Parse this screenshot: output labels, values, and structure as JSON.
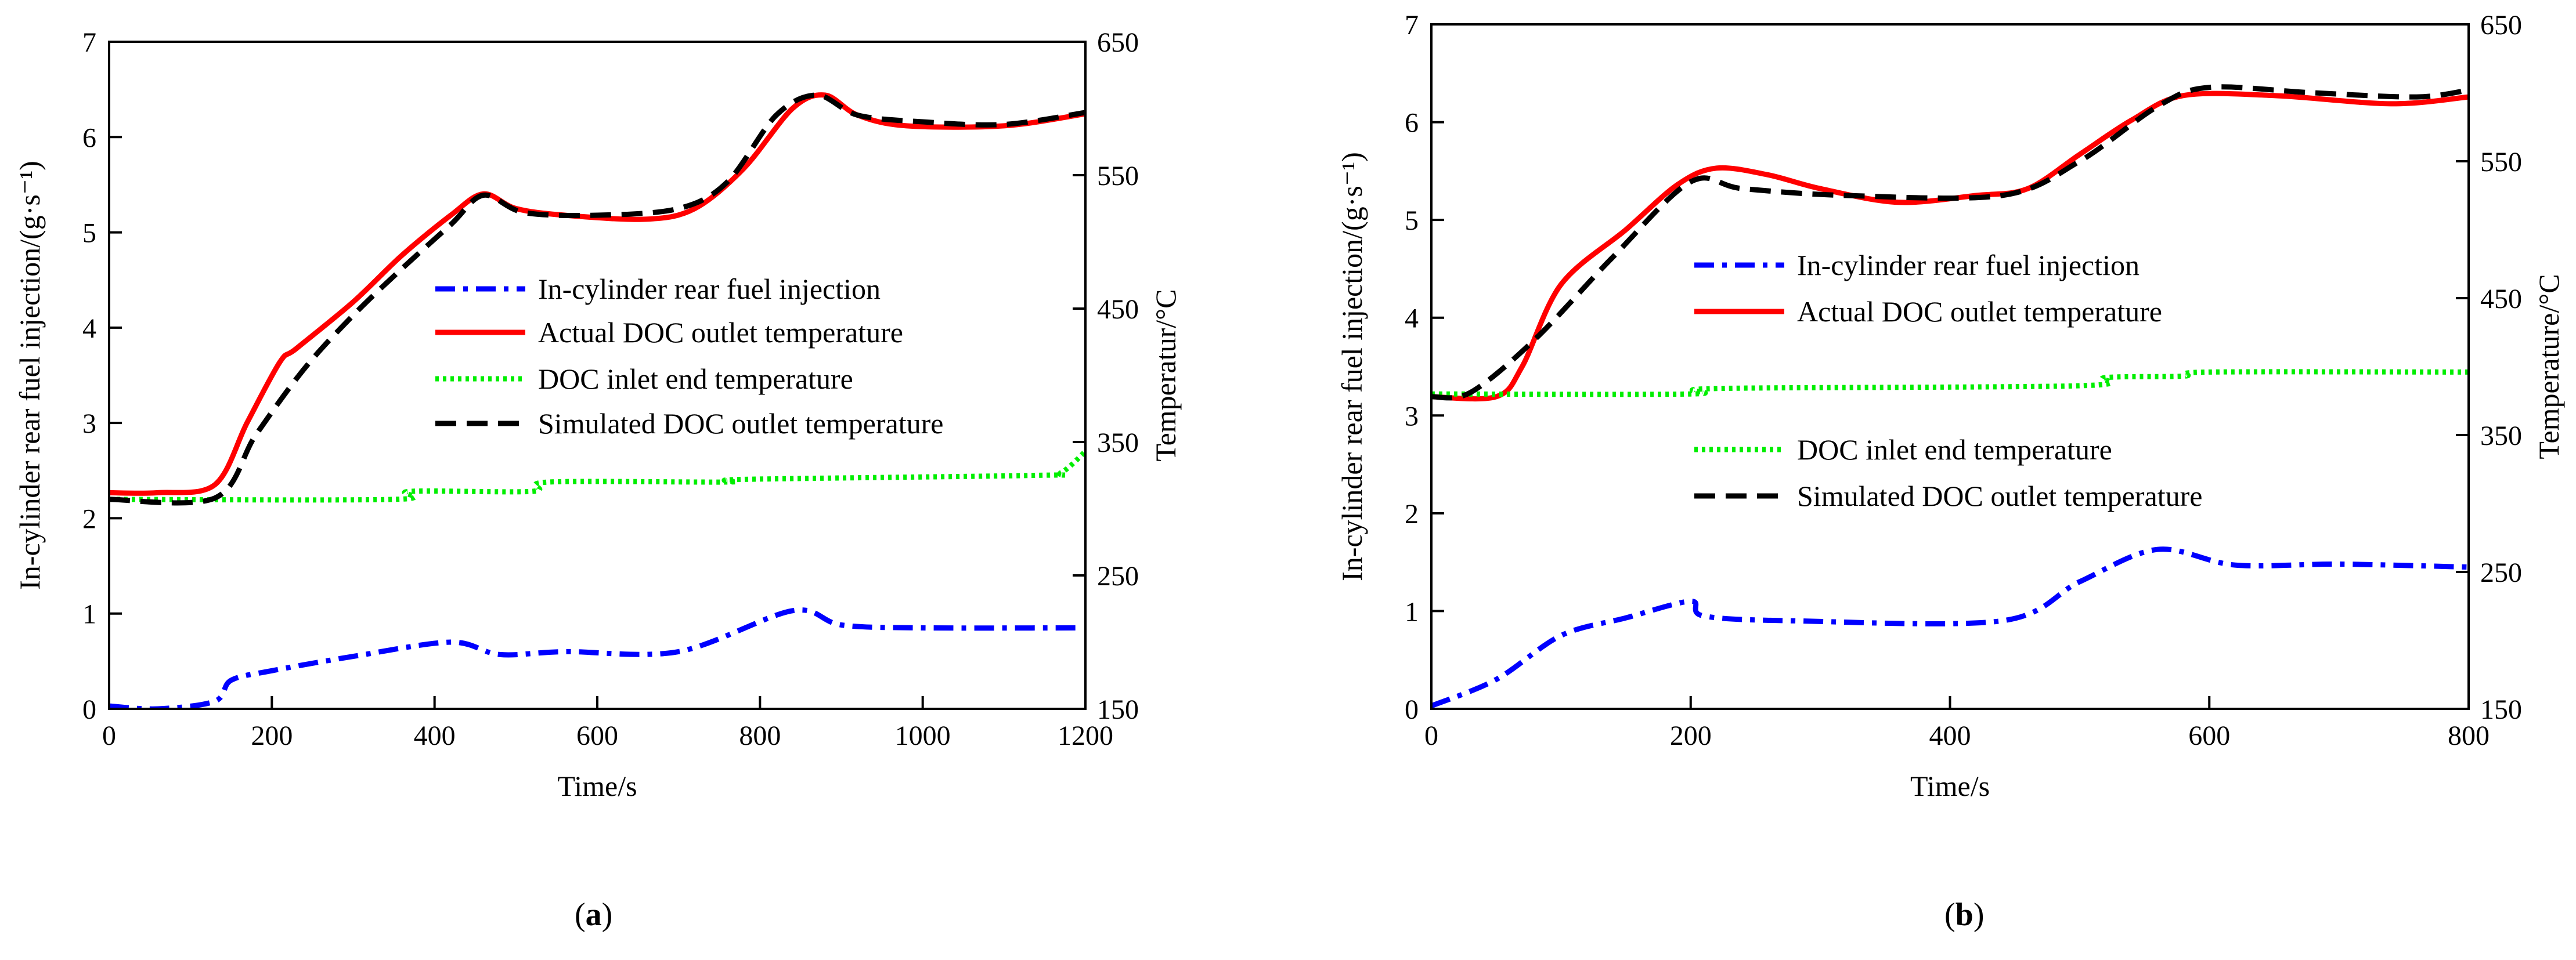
{
  "colors": {
    "injection": "#0000ff",
    "actual_outlet": "#ff0000",
    "inlet": "#00ee00",
    "simulated_outlet": "#000000"
  },
  "chart_data": [
    {
      "type": "line",
      "caption": "(a)",
      "caption_letter": "a",
      "xlabel": "Time/s",
      "ylabel_left": "In-cylinder rear fuel injection/(g·s⁻¹)",
      "ylabel_right": "Temperatur/°C",
      "xlim": [
        0,
        1200
      ],
      "ylim_left": [
        0,
        7
      ],
      "ylim_right": [
        150,
        650
      ],
      "x_ticks": [
        0,
        200,
        400,
        600,
        800,
        1000,
        1200
      ],
      "y_left_ticks": [
        0,
        1,
        2,
        3,
        4,
        5,
        6,
        7
      ],
      "y_right_ticks": [
        150,
        250,
        350,
        450,
        550,
        650
      ],
      "legend": [
        {
          "label": "In-cylinder rear fuel injection",
          "series": "injection"
        },
        {
          "label": "Actual DOC outlet temperature",
          "series": "actual_outlet"
        },
        {
          "label": "DOC inlet end temperature",
          "series": "inlet"
        },
        {
          "label": "Simulated DOC outlet temperature",
          "series": "simulated_outlet"
        }
      ],
      "series": [
        {
          "name": "In-cylinder rear fuel injection",
          "key": "injection",
          "axis": "left",
          "points": [
            [
              0,
              0.03
            ],
            [
              60,
              0.0
            ],
            [
              130,
              0.08
            ],
            [
              150,
              0.3
            ],
            [
              200,
              0.4
            ],
            [
              300,
              0.55
            ],
            [
              420,
              0.7
            ],
            [
              480,
              0.57
            ],
            [
              560,
              0.6
            ],
            [
              700,
              0.6
            ],
            [
              840,
              1.03
            ],
            [
              900,
              0.88
            ],
            [
              1000,
              0.85
            ],
            [
              1190,
              0.85
            ]
          ]
        },
        {
          "name": "Actual DOC outlet temperature",
          "key": "actual_outlet",
          "axis": "right",
          "points": [
            [
              0,
              312
            ],
            [
              60,
              312
            ],
            [
              130,
              318
            ],
            [
              170,
              365
            ],
            [
              210,
              410
            ],
            [
              230,
              420
            ],
            [
              300,
              455
            ],
            [
              360,
              490
            ],
            [
              420,
              520
            ],
            [
              460,
              536
            ],
            [
              500,
              525
            ],
            [
              560,
              520
            ],
            [
              660,
              517
            ],
            [
              720,
              525
            ],
            [
              780,
              555
            ],
            [
              840,
              600
            ],
            [
              880,
              610
            ],
            [
              920,
              595
            ],
            [
              980,
              587
            ],
            [
              1100,
              587
            ],
            [
              1200,
              596
            ]
          ]
        },
        {
          "name": "DOC inlet end temperature",
          "key": "inlet",
          "axis": "right",
          "points": [
            [
              0,
              307
            ],
            [
              350,
              307
            ],
            [
              370,
              313
            ],
            [
              520,
              313
            ],
            [
              540,
              320
            ],
            [
              760,
              320
            ],
            [
              780,
              322
            ],
            [
              1140,
              325
            ],
            [
              1170,
              327
            ],
            [
              1200,
              343
            ]
          ]
        },
        {
          "name": "Simulated DOC outlet temperature",
          "key": "simulated_outlet",
          "axis": "right",
          "points": [
            [
              0,
              307
            ],
            [
              130,
              308
            ],
            [
              180,
              355
            ],
            [
              240,
              405
            ],
            [
              300,
              445
            ],
            [
              360,
              480
            ],
            [
              420,
              513
            ],
            [
              460,
              535
            ],
            [
              510,
              522
            ],
            [
              600,
              520
            ],
            [
              700,
              525
            ],
            [
              760,
              545
            ],
            [
              820,
              595
            ],
            [
              870,
              610
            ],
            [
              920,
              595
            ],
            [
              1000,
              590
            ],
            [
              1100,
              588
            ],
            [
              1200,
              597
            ]
          ]
        }
      ]
    },
    {
      "type": "line",
      "caption": "(b)",
      "caption_letter": "b",
      "xlabel": "Time/s",
      "ylabel_left": "In-cylinder rear fuel injection/(g·s⁻¹)",
      "ylabel_right": "Temperature/°C",
      "xlim": [
        0,
        800
      ],
      "ylim_left": [
        0,
        7
      ],
      "ylim_right": [
        150,
        650
      ],
      "x_ticks": [
        0,
        200,
        400,
        600,
        800
      ],
      "y_left_ticks": [
        0,
        1,
        2,
        3,
        4,
        5,
        6,
        7
      ],
      "y_right_ticks": [
        150,
        250,
        350,
        450,
        550,
        650
      ],
      "legend": [
        {
          "label": "In-cylinder rear fuel injection",
          "series": "injection"
        },
        {
          "label": "Actual DOC outlet temperature",
          "series": "actual_outlet"
        },
        {
          "label": "DOC inlet end temperature",
          "series": "inlet"
        },
        {
          "label": "Simulated DOC outlet temperature",
          "series": "simulated_outlet"
        }
      ],
      "series": [
        {
          "name": "In-cylinder rear fuel injection",
          "key": "injection",
          "axis": "left",
          "points": [
            [
              0,
              0.03
            ],
            [
              50,
              0.3
            ],
            [
              100,
              0.75
            ],
            [
              150,
              0.93
            ],
            [
              200,
              1.1
            ],
            [
              210,
              0.95
            ],
            [
              280,
              0.9
            ],
            [
              440,
              0.9
            ],
            [
              500,
              1.3
            ],
            [
              560,
              1.63
            ],
            [
              620,
              1.47
            ],
            [
              700,
              1.48
            ],
            [
              800,
              1.45
            ]
          ]
        },
        {
          "name": "Actual DOC outlet temperature",
          "key": "actual_outlet",
          "axis": "right",
          "points": [
            [
              0,
              378
            ],
            [
              50,
              378
            ],
            [
              70,
              400
            ],
            [
              100,
              460
            ],
            [
              150,
              500
            ],
            [
              190,
              533
            ],
            [
              220,
              545
            ],
            [
              260,
              540
            ],
            [
              300,
              530
            ],
            [
              360,
              520
            ],
            [
              420,
              525
            ],
            [
              460,
              530
            ],
            [
              500,
              555
            ],
            [
              540,
              580
            ],
            [
              580,
              598
            ],
            [
              650,
              598
            ],
            [
              740,
              592
            ],
            [
              800,
              597
            ]
          ]
        },
        {
          "name": "DOC inlet end temperature",
          "key": "inlet",
          "axis": "right",
          "points": [
            [
              0,
              380
            ],
            [
              200,
              380
            ],
            [
              220,
              384
            ],
            [
              500,
              386
            ],
            [
              520,
              392
            ],
            [
              580,
              393
            ],
            [
              600,
              396
            ],
            [
              800,
              396
            ]
          ]
        },
        {
          "name": "Simulated DOC outlet temperature",
          "key": "simulated_outlet",
          "axis": "right",
          "points": [
            [
              0,
              378
            ],
            [
              30,
              381
            ],
            [
              80,
              420
            ],
            [
              140,
              480
            ],
            [
              200,
              535
            ],
            [
              240,
              530
            ],
            [
              320,
              525
            ],
            [
              440,
              525
            ],
            [
              500,
              550
            ],
            [
              560,
              590
            ],
            [
              600,
              604
            ],
            [
              680,
              600
            ],
            [
              760,
              597
            ],
            [
              800,
              602
            ]
          ]
        }
      ]
    }
  ]
}
